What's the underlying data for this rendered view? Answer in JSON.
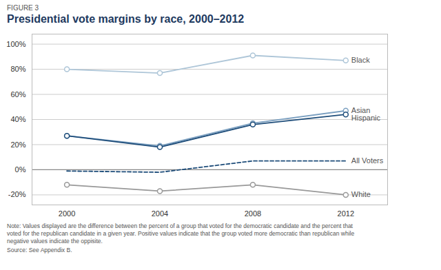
{
  "chart_data": {
    "type": "line",
    "subtitle": "FIGURE 3",
    "title": "Presidential vote margins by race, 2000–2012",
    "x": [
      2000,
      2004,
      2008,
      2012
    ],
    "series": [
      {
        "name": "Black",
        "color": "#aec6d8",
        "values": [
          80,
          77,
          91,
          87
        ],
        "line_style": "solid",
        "marker": "circle"
      },
      {
        "name": "White",
        "color": "#999999",
        "values": [
          -12,
          -17,
          -12,
          -20
        ],
        "line_style": "solid",
        "marker": "circle"
      },
      {
        "name": "All Voters",
        "color": "#1e4d7a",
        "values": [
          -1,
          -2,
          7,
          7
        ],
        "line_style": "dashed",
        "marker": "none"
      },
      {
        "name": "Asian",
        "color": "#7a9fc0",
        "values": [
          27,
          19,
          37,
          47
        ],
        "line_style": "solid",
        "marker": "circle"
      },
      {
        "name": "Hispanic",
        "color": "#1e4d7a",
        "values": [
          27,
          18,
          36,
          44
        ],
        "line_style": "solid",
        "marker": "circle"
      }
    ],
    "xlim": [
      1998.5,
      2013.8
    ],
    "xticks": [
      2000,
      2004,
      2008,
      2012
    ],
    "ylim": [
      -28,
      108
    ],
    "yticks": [
      {
        "value": -20,
        "label": "-20%"
      },
      {
        "value": 0,
        "label": "0%"
      },
      {
        "value": 20,
        "label": "20%"
      },
      {
        "value": 40,
        "label": "40%"
      },
      {
        "value": 60,
        "label": "60%"
      },
      {
        "value": 80,
        "label": "80%"
      },
      {
        "value": 100,
        "label": "100%"
      }
    ],
    "grid": true,
    "annotations": [
      "Note: Values displayed are the difference between the percent of a group that voted for the democratic candidate and the percent that",
      "voted for the republican candidate in a given year. Positive values indicate that the group voted more democratic than republican while",
      "negative values indicate the oppisite.",
      "Source: See Appendix B."
    ]
  }
}
